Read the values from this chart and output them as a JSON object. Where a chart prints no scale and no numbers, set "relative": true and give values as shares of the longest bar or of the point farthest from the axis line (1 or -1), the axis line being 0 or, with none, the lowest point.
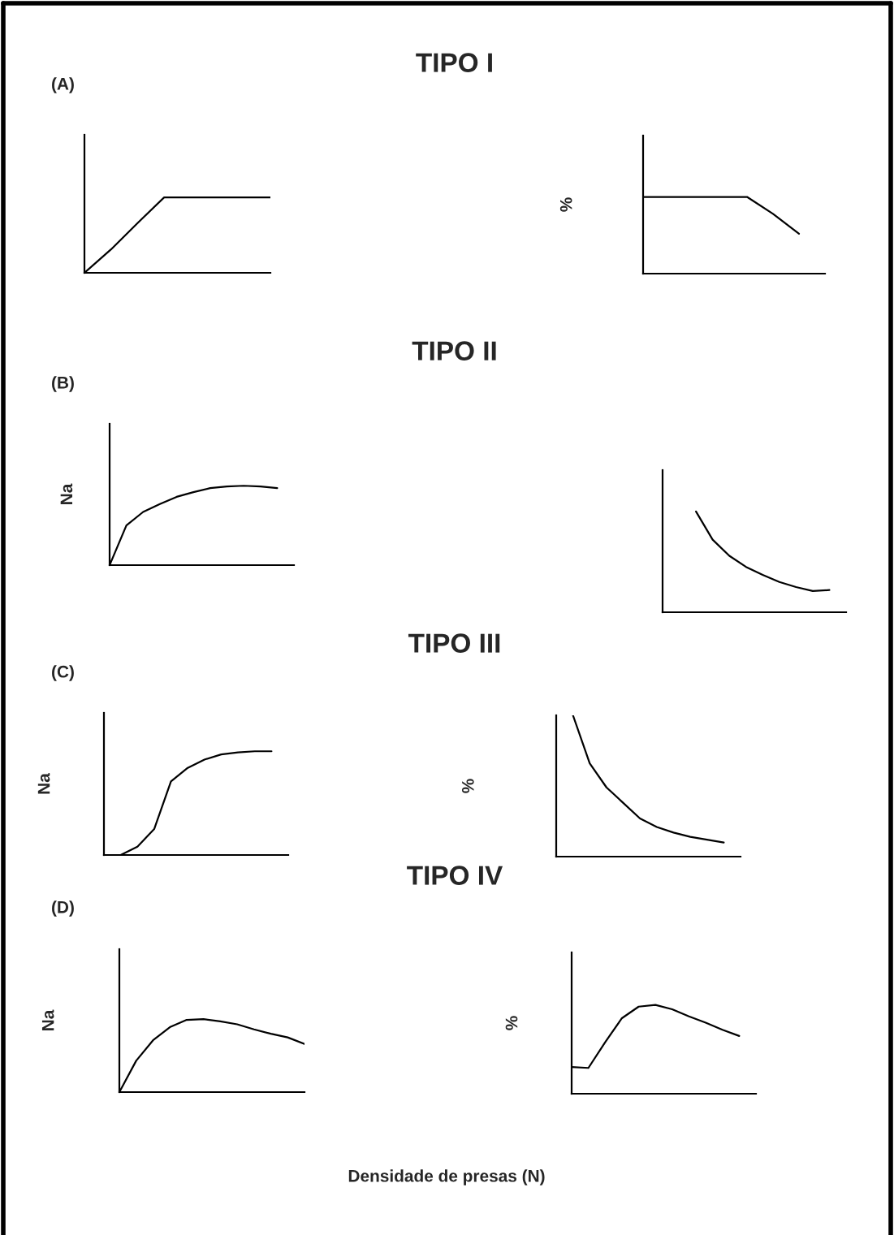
{
  "chart_data": [
    {
      "type": "other",
      "title": "TIPO I",
      "annotations": [
        "(A)"
      ]
    },
    {
      "type": "line",
      "relative": true,
      "categories": [
        null,
        null,
        null,
        null,
        null,
        null,
        null,
        null
      ],
      "series": [
        {
          "color": "#000000",
          "values": [
            0,
            0.31,
            0.66,
            1,
            1,
            1,
            1,
            1
          ]
        }
      ]
    },
    {
      "type": "line",
      "relative": true,
      "ylabel": "%",
      "categories": [
        null,
        null,
        null,
        null,
        null,
        null,
        null,
        null
      ],
      "series": [
        {
          "color": "#000000",
          "values": [
            1,
            1,
            1,
            1,
            1,
            0.78,
            0.52,
            null
          ]
        }
      ]
    },
    {
      "type": "other",
      "title": "TIPO II",
      "annotations": [
        "(B)"
      ]
    },
    {
      "type": "line",
      "relative": true,
      "ylabel": "Na",
      "categories": [
        null,
        null,
        null,
        null,
        null,
        null,
        null,
        null,
        null,
        null,
        null,
        null
      ],
      "series": [
        {
          "color": "#000000",
          "values": [
            0,
            0.5,
            0.67,
            0.77,
            0.86,
            0.92,
            0.97,
            0.99,
            1,
            0.99,
            0.97,
            null
          ]
        }
      ]
    },
    {
      "type": "line",
      "relative": true,
      "categories": [
        null,
        null,
        null,
        null,
        null,
        null,
        null,
        null,
        null,
        null,
        null,
        null
      ],
      "series": [
        {
          "color": "#000000",
          "values": [
            null,
            null,
            1,
            0.72,
            0.56,
            0.45,
            0.37,
            0.3,
            0.25,
            0.21,
            0.22,
            null
          ]
        }
      ]
    },
    {
      "type": "other",
      "title": "TIPO III",
      "annotations": [
        "(C)"
      ]
    },
    {
      "type": "line",
      "relative": true,
      "ylabel": "Na",
      "categories": [
        null,
        null,
        null,
        null,
        null,
        null,
        null,
        null,
        null,
        null,
        null,
        null
      ],
      "series": [
        {
          "color": "#000000",
          "values": [
            0,
            0,
            0.08,
            0.25,
            0.71,
            0.84,
            0.92,
            0.97,
            0.99,
            1,
            1,
            null
          ]
        }
      ]
    },
    {
      "type": "line",
      "relative": true,
      "ylabel": "%",
      "categories": [
        null,
        null,
        null,
        null,
        null,
        null,
        null,
        null,
        null,
        null,
        null,
        null
      ],
      "series": [
        {
          "color": "#000000",
          "values": [
            null,
            1,
            0.66,
            0.49,
            0.38,
            0.27,
            0.21,
            0.17,
            0.14,
            0.12,
            0.1,
            null
          ]
        }
      ]
    },
    {
      "type": "other",
      "title": "TIPO IV",
      "annotations": [
        "(D)"
      ]
    },
    {
      "type": "line",
      "relative": true,
      "ylabel": "Na",
      "xlabel": "Densidade de presas (N)",
      "categories": [
        null,
        null,
        null,
        null,
        null,
        null,
        null,
        null,
        null,
        null,
        null,
        null
      ],
      "series": [
        {
          "color": "#000000",
          "values": [
            0,
            0.43,
            0.71,
            0.89,
            0.99,
            1,
            0.97,
            0.93,
            0.86,
            0.8,
            0.75,
            0.66
          ]
        }
      ]
    },
    {
      "type": "line",
      "relative": true,
      "ylabel": "%",
      "categories": [
        null,
        null,
        null,
        null,
        null,
        null,
        null,
        null,
        null,
        null,
        null,
        null
      ],
      "series": [
        {
          "color": "#000000",
          "values": [
            0.3,
            0.29,
            0.58,
            0.85,
            0.98,
            1,
            0.95,
            0.87,
            0.8,
            0.72,
            0.65,
            null
          ]
        }
      ]
    }
  ]
}
